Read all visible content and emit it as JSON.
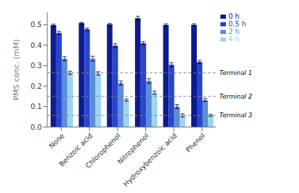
{
  "chart_data": {
    "type": "bar",
    "categories": [
      "None",
      "Benzoic acid",
      "Chlorophenol",
      "Nitrophenol",
      "Hydroxybenzoic acid",
      "Phenol"
    ],
    "series": [
      {
        "name": "0 h",
        "color": "#0d1b8e",
        "values": [
          0.498,
          0.508,
          0.502,
          0.532,
          0.499,
          0.5
        ],
        "errors": [
          0.005,
          0.004,
          0.005,
          0.01,
          0.005,
          0.005
        ]
      },
      {
        "name": "0.5 h",
        "color": "#2645d4",
        "values": [
          0.46,
          0.478,
          0.398,
          0.41,
          0.305,
          0.318
        ],
        "errors": [
          0.008,
          0.006,
          0.01,
          0.008,
          0.01,
          0.008
        ]
      },
      {
        "name": "2 h",
        "color": "#5b8dd9",
        "values": [
          0.334,
          0.334,
          0.215,
          0.225,
          0.1,
          0.132
        ],
        "errors": [
          0.01,
          0.012,
          0.01,
          0.012,
          0.01,
          0.008
        ]
      },
      {
        "name": "4 h",
        "color": "#9dd4f0",
        "values": [
          0.265,
          0.262,
          0.132,
          0.168,
          0.057,
          0.057
        ],
        "errors": [
          0.008,
          0.008,
          0.005,
          0.008,
          0.008,
          0.005
        ]
      }
    ],
    "ylabel": "PMS conc. (mM)",
    "ylim": [
      0,
      0.56
    ],
    "yticks": [
      {
        "value": 0,
        "label": "0.0"
      },
      0.1,
      0.2,
      0.3,
      0.4,
      0.5
    ],
    "annotations": [
      {
        "y": 0.265,
        "label": "Terminal 1",
        "line_style": "dashed"
      },
      {
        "y": 0.15,
        "label": "Terminal 2",
        "line_style": "dashed"
      },
      {
        "y": 0.057,
        "label": "Terminal 3",
        "line_style": "dashed"
      }
    ],
    "legend": "upper right",
    "grid": false
  }
}
